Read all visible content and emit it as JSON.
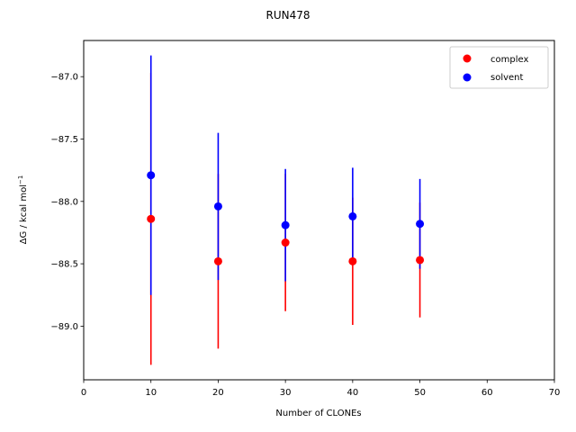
{
  "chart_data": {
    "type": "scatter",
    "title": "RUN478",
    "xlabel": "Number of CLONEs",
    "ylabel_main": "ΔG / kcal mol",
    "ylabel_sup": "−1",
    "xlim": [
      0,
      70
    ],
    "ylim": [
      -89.43,
      -86.71
    ],
    "xticks": [
      0,
      10,
      20,
      30,
      40,
      50,
      60,
      70
    ],
    "xtick_labels": [
      "0",
      "10",
      "20",
      "30",
      "40",
      "50",
      "60",
      "70"
    ],
    "yticks": [
      -87.0,
      -87.5,
      -88.0,
      -88.5,
      -89.0
    ],
    "ytick_labels": [
      "−87.0",
      "−87.5",
      "−88.0",
      "−88.5",
      "−89.0"
    ],
    "grid": false,
    "legend_position": "top-right",
    "series": [
      {
        "name": "complex",
        "color": "#ff0000",
        "x": [
          10,
          20,
          30,
          40,
          50
        ],
        "y": [
          -88.14,
          -88.48,
          -88.33,
          -88.48,
          -88.47
        ],
        "err": [
          1.17,
          0.7,
          0.55,
          0.51,
          0.46
        ]
      },
      {
        "name": "solvent",
        "color": "#0000ff",
        "x": [
          10,
          20,
          30,
          40,
          50
        ],
        "y": [
          -87.79,
          -88.04,
          -88.19,
          -88.12,
          -88.18
        ],
        "err": [
          0.96,
          0.59,
          0.45,
          0.39,
          0.36
        ]
      }
    ]
  }
}
